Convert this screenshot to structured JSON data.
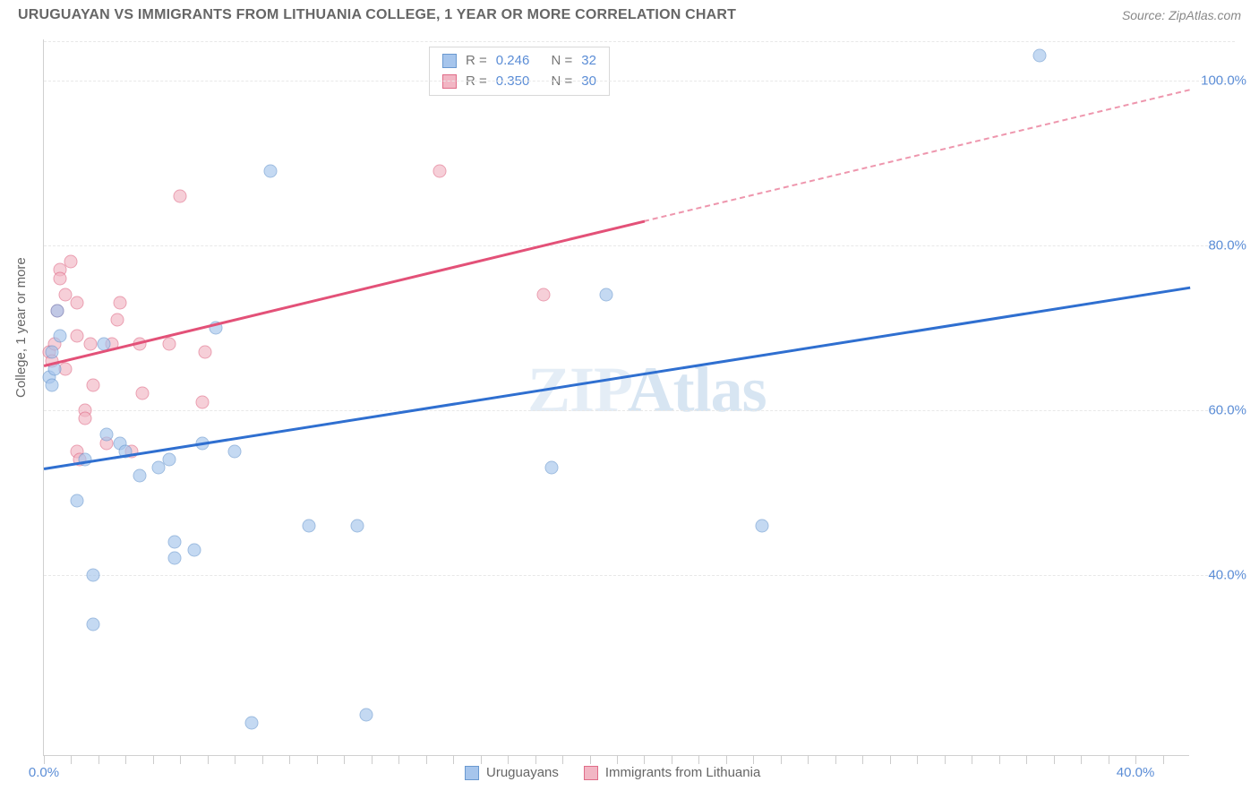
{
  "header": {
    "title": "URUGUAYAN VS IMMIGRANTS FROM LITHUANIA COLLEGE, 1 YEAR OR MORE CORRELATION CHART",
    "source": "Source: ZipAtlas.com"
  },
  "watermark": {
    "prefix": "ZIP",
    "suffix": "Atlas"
  },
  "axes": {
    "ylabel": "College, 1 year or more",
    "xlim": [
      0,
      42
    ],
    "ylim": [
      18,
      105
    ],
    "y_ticks": [
      40,
      60,
      80,
      100
    ],
    "y_tick_labels": [
      "40.0%",
      "60.0%",
      "80.0%",
      "100.0%"
    ],
    "x_ticks": [
      0,
      20,
      40
    ],
    "x_tick_labels": [
      "0.0%",
      "",
      "40.0%"
    ],
    "x_minor_ticks": [
      0,
      1,
      2,
      3,
      4,
      5,
      6,
      7,
      8,
      9,
      10,
      11,
      12,
      13,
      14,
      15,
      16,
      17,
      18,
      19,
      20,
      21,
      22,
      23,
      24,
      25,
      26,
      27,
      28,
      29,
      30,
      31,
      32,
      33,
      34,
      35,
      36,
      37,
      38,
      39,
      40,
      41
    ],
    "grid_color": "#e8e8e8",
    "label_fontsize": 15,
    "tick_color": "#5b8dd6"
  },
  "series": {
    "uruguayans": {
      "label": "Uruguayans",
      "color_fill": "#a6c5ec",
      "color_stroke": "#6a99d0",
      "marker_size": 15,
      "marker_opacity": 0.65,
      "trend_color": "#2f6fd0",
      "trend": {
        "x1": 0,
        "y1": 53,
        "x2": 42,
        "y2": 75
      },
      "stats": {
        "R": "0.246",
        "N": "32"
      },
      "points": [
        [
          0.2,
          64
        ],
        [
          0.3,
          63
        ],
        [
          0.4,
          65
        ],
        [
          0.6,
          69
        ],
        [
          0.3,
          67
        ],
        [
          0.5,
          72
        ],
        [
          1.2,
          49
        ],
        [
          1.5,
          54
        ],
        [
          2.2,
          68
        ],
        [
          2.3,
          57
        ],
        [
          2.8,
          56
        ],
        [
          3.0,
          55
        ],
        [
          3.5,
          52
        ],
        [
          4.2,
          53
        ],
        [
          4.6,
          54
        ],
        [
          4.8,
          44
        ],
        [
          4.8,
          42
        ],
        [
          5.5,
          43
        ],
        [
          5.8,
          56
        ],
        [
          6.3,
          70
        ],
        [
          7.0,
          55
        ],
        [
          8.3,
          89
        ],
        [
          1.8,
          40
        ],
        [
          1.8,
          34
        ],
        [
          9.7,
          46
        ],
        [
          11.5,
          46
        ],
        [
          7.6,
          22
        ],
        [
          11.8,
          23
        ],
        [
          18.6,
          53
        ],
        [
          20.6,
          74
        ],
        [
          26.3,
          46
        ],
        [
          36.5,
          103
        ]
      ]
    },
    "lithuania": {
      "label": "Immigants from Lithuania",
      "label_display": "Immigrants from Lithuania",
      "color_fill": "#f2b6c4",
      "color_stroke": "#e06c88",
      "marker_size": 15,
      "marker_opacity": 0.65,
      "trend_color": "#e35178",
      "trend": {
        "x1": 0,
        "y1": 65.5,
        "x2": 42,
        "y2": 99,
        "dash_from_x": 22
      },
      "stats": {
        "R": "0.350",
        "N": "30"
      },
      "points": [
        [
          0.2,
          67
        ],
        [
          0.3,
          66
        ],
        [
          0.4,
          68
        ],
        [
          0.6,
          77
        ],
        [
          0.6,
          76
        ],
        [
          0.8,
          74
        ],
        [
          0.5,
          72
        ],
        [
          1.0,
          78
        ],
        [
          1.2,
          73
        ],
        [
          1.2,
          69
        ],
        [
          1.5,
          60
        ],
        [
          1.5,
          59
        ],
        [
          1.7,
          68
        ],
        [
          1.2,
          55
        ],
        [
          1.3,
          54
        ],
        [
          1.8,
          63
        ],
        [
          2.3,
          56
        ],
        [
          2.5,
          68
        ],
        [
          2.7,
          71
        ],
        [
          2.8,
          73
        ],
        [
          3.5,
          68
        ],
        [
          3.6,
          62
        ],
        [
          4.6,
          68
        ],
        [
          5.0,
          86
        ],
        [
          5.8,
          61
        ],
        [
          5.9,
          67
        ],
        [
          14.5,
          89
        ],
        [
          18.3,
          74
        ],
        [
          3.2,
          55
        ],
        [
          0.8,
          65
        ]
      ]
    }
  },
  "stat_legend": {
    "rows": [
      {
        "swatch_fill": "#a6c5ec",
        "swatch_stroke": "#6a99d0",
        "R": "0.246",
        "N": "32"
      },
      {
        "swatch_fill": "#f2b6c4",
        "swatch_stroke": "#e06c88",
        "R": "0.350",
        "N": "30"
      }
    ],
    "labels": {
      "R": "R =",
      "N": "N ="
    }
  },
  "bottom_legend": [
    {
      "swatch_fill": "#a6c5ec",
      "swatch_stroke": "#6a99d0",
      "label": "Uruguayans"
    },
    {
      "swatch_fill": "#f2b6c4",
      "swatch_stroke": "#e06c88",
      "label": "Immigrants from Lithuania"
    }
  ]
}
